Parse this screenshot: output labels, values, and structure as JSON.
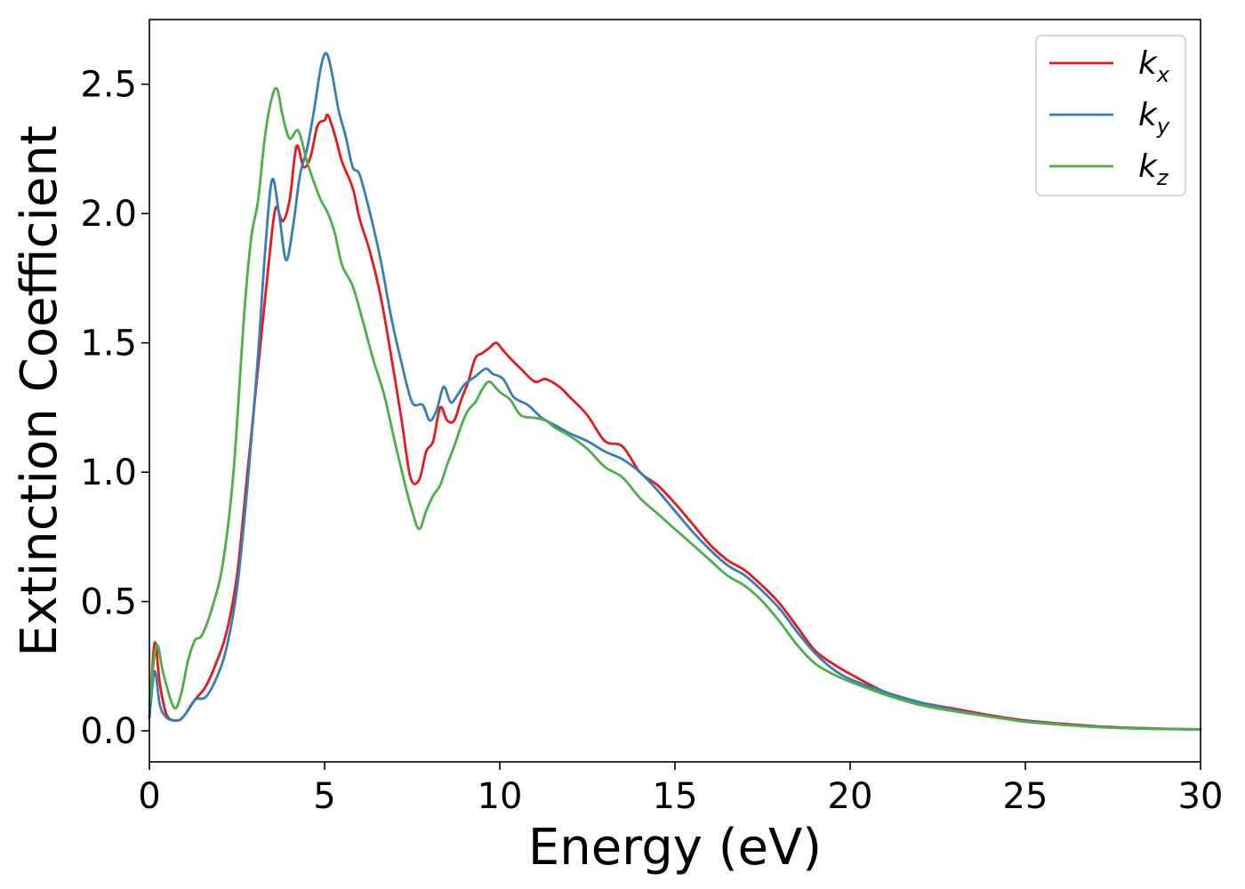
{
  "chart_data": {
    "type": "line",
    "xlabel": "Energy (eV)",
    "ylabel": "Extinction Coefficient",
    "xlim": [
      0,
      30
    ],
    "ylim": [
      -0.12,
      2.75
    ],
    "xticks": [
      0,
      5,
      10,
      15,
      20,
      25,
      30
    ],
    "yticks": [
      0.0,
      0.5,
      1.0,
      1.5,
      2.0,
      2.5
    ],
    "xtick_labels": [
      "0",
      "5",
      "10",
      "15",
      "20",
      "25",
      "30"
    ],
    "ytick_labels": [
      "0.0",
      "0.5",
      "1.0",
      "1.5",
      "2.0",
      "2.5"
    ],
    "grid": false,
    "legend_position": "top-right",
    "series": [
      {
        "name": "k_x",
        "label_main": "k",
        "label_sub": "x",
        "color": "#e41a1c",
        "x": [
          0,
          0.15,
          0.3,
          0.5,
          0.8,
          1.0,
          1.3,
          1.6,
          1.9,
          2.2,
          2.5,
          2.8,
          3.1,
          3.4,
          3.6,
          3.8,
          4.0,
          4.2,
          4.4,
          4.6,
          4.8,
          5.0,
          5.1,
          5.3,
          5.5,
          5.8,
          6.0,
          6.3,
          6.6,
          6.9,
          7.2,
          7.45,
          7.7,
          7.9,
          8.1,
          8.3,
          8.5,
          8.7,
          8.9,
          9.1,
          9.3,
          9.5,
          9.7,
          9.9,
          10.1,
          10.3,
          10.6,
          11.0,
          11.3,
          11.7,
          12.0,
          12.5,
          13.0,
          13.5,
          14.0,
          14.5,
          15.0,
          15.5,
          16.0,
          16.5,
          17.0,
          17.5,
          18.0,
          18.5,
          19.0,
          19.5,
          20.0,
          21.0,
          22.0,
          23.0,
          24.0,
          25.0,
          26.0,
          27.0,
          28.0,
          29.0,
          30.0
        ],
        "y": [
          0.05,
          0.34,
          0.18,
          0.06,
          0.04,
          0.06,
          0.12,
          0.17,
          0.26,
          0.38,
          0.6,
          1.0,
          1.4,
          1.8,
          2.02,
          1.97,
          2.05,
          2.26,
          2.18,
          2.22,
          2.34,
          2.36,
          2.38,
          2.3,
          2.2,
          2.1,
          1.98,
          1.85,
          1.68,
          1.45,
          1.2,
          0.98,
          0.97,
          1.08,
          1.12,
          1.25,
          1.2,
          1.2,
          1.28,
          1.35,
          1.44,
          1.46,
          1.48,
          1.5,
          1.47,
          1.44,
          1.4,
          1.35,
          1.36,
          1.33,
          1.29,
          1.22,
          1.12,
          1.1,
          1.0,
          0.95,
          0.88,
          0.8,
          0.72,
          0.66,
          0.62,
          0.56,
          0.49,
          0.4,
          0.31,
          0.26,
          0.22,
          0.15,
          0.11,
          0.085,
          0.06,
          0.04,
          0.028,
          0.018,
          0.012,
          0.008,
          0.006
        ]
      },
      {
        "name": "k_y",
        "label_main": "k",
        "label_sub": "y",
        "color": "#377eb8",
        "x": [
          0,
          0.15,
          0.3,
          0.5,
          0.8,
          1.0,
          1.3,
          1.6,
          1.9,
          2.2,
          2.5,
          2.8,
          3.1,
          3.3,
          3.5,
          3.7,
          3.9,
          4.1,
          4.3,
          4.5,
          4.7,
          4.9,
          5.05,
          5.2,
          5.4,
          5.6,
          5.8,
          6.0,
          6.3,
          6.6,
          6.9,
          7.2,
          7.5,
          7.8,
          8.0,
          8.2,
          8.4,
          8.6,
          8.8,
          9.0,
          9.3,
          9.6,
          9.8,
          10.1,
          10.4,
          10.8,
          11.2,
          11.6,
          12.0,
          12.5,
          13.0,
          13.5,
          14.0,
          14.5,
          15.0,
          15.5,
          16.0,
          16.5,
          17.0,
          17.5,
          18.0,
          18.5,
          19.0,
          19.5,
          20.0,
          21.0,
          22.0,
          23.0,
          24.0,
          25.0,
          26.0,
          27.0,
          28.0,
          29.0,
          30.0
        ],
        "y": [
          0.05,
          0.23,
          0.1,
          0.05,
          0.04,
          0.06,
          0.12,
          0.13,
          0.2,
          0.32,
          0.55,
          0.95,
          1.45,
          1.85,
          2.13,
          2.0,
          1.82,
          1.95,
          2.15,
          2.25,
          2.4,
          2.57,
          2.62,
          2.55,
          2.4,
          2.3,
          2.18,
          2.15,
          2.0,
          1.82,
          1.6,
          1.42,
          1.27,
          1.26,
          1.2,
          1.24,
          1.33,
          1.27,
          1.3,
          1.34,
          1.37,
          1.4,
          1.38,
          1.36,
          1.29,
          1.26,
          1.21,
          1.18,
          1.15,
          1.12,
          1.08,
          1.05,
          1.0,
          0.93,
          0.85,
          0.77,
          0.7,
          0.64,
          0.6,
          0.54,
          0.47,
          0.38,
          0.3,
          0.24,
          0.2,
          0.15,
          0.11,
          0.08,
          0.055,
          0.037,
          0.025,
          0.016,
          0.01,
          0.007,
          0.005
        ]
      },
      {
        "name": "k_z",
        "label_main": "k",
        "label_sub": "z",
        "color": "#4daf4a",
        "x": [
          0,
          0.2,
          0.4,
          0.7,
          0.9,
          1.1,
          1.3,
          1.5,
          1.8,
          2.1,
          2.4,
          2.7,
          2.9,
          3.1,
          3.3,
          3.5,
          3.65,
          3.8,
          4.0,
          4.25,
          4.5,
          4.7,
          4.9,
          5.1,
          5.3,
          5.5,
          5.8,
          6.1,
          6.4,
          6.7,
          7.0,
          7.3,
          7.5,
          7.7,
          7.9,
          8.1,
          8.3,
          8.5,
          8.7,
          8.9,
          9.1,
          9.3,
          9.5,
          9.7,
          10.0,
          10.3,
          10.6,
          11.0,
          11.3,
          11.6,
          12.0,
          12.5,
          13.0,
          13.5,
          14.0,
          14.5,
          15.0,
          15.5,
          16.0,
          16.5,
          17.0,
          17.5,
          18.0,
          18.5,
          19.0,
          19.5,
          20.0,
          21.0,
          22.0,
          23.0,
          24.0,
          25.0,
          26.0,
          27.0,
          28.0,
          29.0,
          30.0
        ],
        "y": [
          0.1,
          0.33,
          0.22,
          0.09,
          0.14,
          0.27,
          0.35,
          0.37,
          0.48,
          0.65,
          1.0,
          1.6,
          1.9,
          2.05,
          2.3,
          2.45,
          2.48,
          2.38,
          2.29,
          2.32,
          2.2,
          2.12,
          2.05,
          2.0,
          1.92,
          1.8,
          1.72,
          1.58,
          1.43,
          1.3,
          1.12,
          0.95,
          0.85,
          0.78,
          0.85,
          0.91,
          0.95,
          1.03,
          1.1,
          1.18,
          1.24,
          1.27,
          1.32,
          1.35,
          1.31,
          1.28,
          1.22,
          1.21,
          1.2,
          1.17,
          1.14,
          1.09,
          1.02,
          0.98,
          0.9,
          0.84,
          0.78,
          0.72,
          0.66,
          0.6,
          0.56,
          0.5,
          0.42,
          0.33,
          0.26,
          0.22,
          0.19,
          0.14,
          0.1,
          0.075,
          0.055,
          0.035,
          0.024,
          0.015,
          0.01,
          0.007,
          0.005
        ]
      }
    ]
  }
}
